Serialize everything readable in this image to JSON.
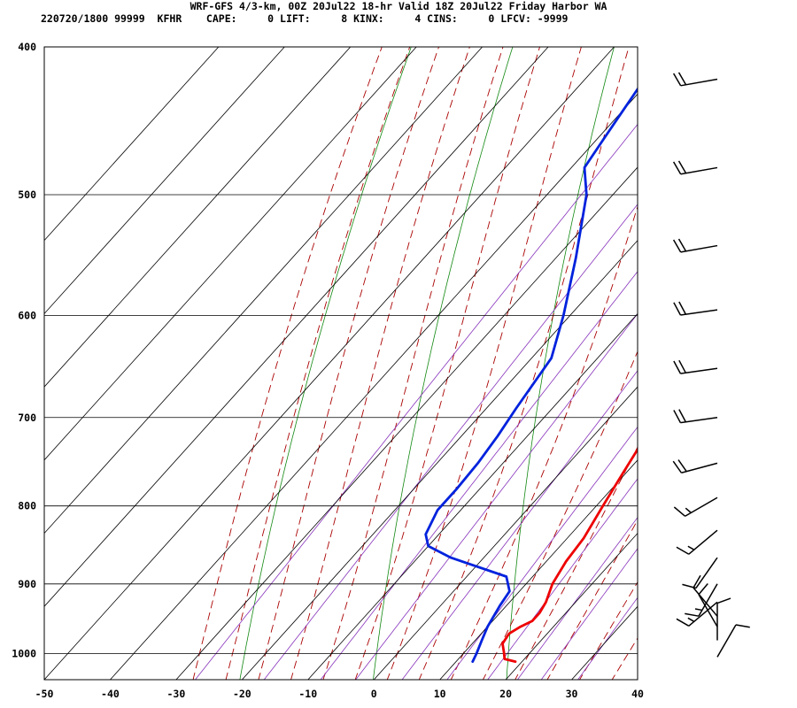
{
  "header": {
    "title": "WRF-GFS 4/3-km, 00Z 20Jul22 18-hr Valid 18Z 20Jul22 Friday Harbor WA",
    "indices": "220720/1800 99999  KFHR    CAPE:     0 LIFT:     8 KINX:     4 CINS:     0 LFCV: -9999"
  },
  "chart_data": {
    "type": "line",
    "title": "WRF-GFS 4/3-km, 00Z 20Jul22 18-hr Valid 18Z 20Jul22 Friday Harbor WA",
    "xlim": [
      -50,
      40
    ],
    "ylim": [
      1040,
      400
    ],
    "y_scale": "log-pressure",
    "x_ticks": [
      "-50",
      "-40",
      "-30",
      "-20",
      "-10",
      "0",
      "10",
      "20",
      "30",
      "40"
    ],
    "y_ticks": [
      "400",
      "500",
      "600",
      "700",
      "800",
      "900",
      "1000"
    ],
    "grid": true,
    "colors": {
      "temperature": "#ee0000",
      "dewpoint": "#0022dd",
      "dry_adiabats": "#118811",
      "moist_adiabats": "#aa0000",
      "mixing_ratio": "#8833bb",
      "grid": "#000000",
      "wind_barbs": "#000000"
    },
    "series": [
      {
        "key": "temperature",
        "p": [
          1012,
          1008,
          998,
          985,
          970,
          960,
          952,
          940,
          925,
          900,
          870,
          840,
          800,
          760,
          720,
          680,
          640,
          600,
          560,
          520,
          480,
          440,
          420
        ],
        "t": [
          19,
          17,
          16,
          14.6,
          14.2,
          15,
          16,
          16,
          15.5,
          14,
          13,
          12.5,
          11,
          9.5,
          8,
          5.5,
          2,
          -1,
          -4.5,
          -8.5,
          -13,
          -18,
          -21
        ]
      },
      {
        "key": "dewpoint",
        "p": [
          1012,
          1000,
          980,
          960,
          930,
          910,
          890,
          865,
          850,
          835,
          805,
          780,
          750,
          720,
          690,
          640,
          600,
          550,
          500,
          480,
          460,
          420
        ],
        "t": [
          12.5,
          12,
          11,
          10,
          9,
          8.5,
          6,
          -5,
          -10,
          -12,
          -13.5,
          -13.5,
          -13.8,
          -14.5,
          -15.5,
          -17,
          -21,
          -27,
          -34,
          -38,
          -39,
          -41
        ]
      }
    ],
    "wind_barbs": [
      {
        "p": 420,
        "dir": 260,
        "speed_kt": 20
      },
      {
        "p": 480,
        "dir": 260,
        "speed_kt": 20
      },
      {
        "p": 540,
        "dir": 260,
        "speed_kt": 20
      },
      {
        "p": 595,
        "dir": 262,
        "speed_kt": 20
      },
      {
        "p": 650,
        "dir": 262,
        "speed_kt": 20
      },
      {
        "p": 700,
        "dir": 262,
        "speed_kt": 20
      },
      {
        "p": 750,
        "dir": 255,
        "speed_kt": 20
      },
      {
        "p": 790,
        "dir": 240,
        "speed_kt": 15
      },
      {
        "p": 830,
        "dir": 230,
        "speed_kt": 15
      },
      {
        "p": 865,
        "dir": 215,
        "speed_kt": 10
      },
      {
        "p": 900,
        "dir": 210,
        "speed_kt": 15
      },
      {
        "p": 925,
        "dir": 230,
        "speed_kt": 15
      },
      {
        "p": 945,
        "dir": 320,
        "speed_kt": 10
      },
      {
        "p": 960,
        "dir": 330,
        "speed_kt": 10
      },
      {
        "p": 980,
        "dir": 360,
        "speed_kt": 10
      },
      {
        "p": 1005,
        "dir": 30,
        "speed_kt": 10
      }
    ]
  }
}
